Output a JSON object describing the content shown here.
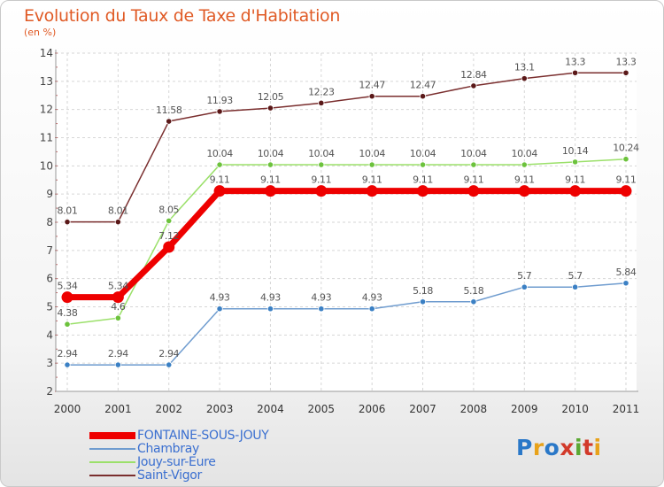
{
  "title": "Evolution du Taux de Taxe d'Habitation",
  "subtitle": "(en %)",
  "logo": {
    "text": "Proxiti",
    "letter_colors": [
      "#2a78c8",
      "#e8a21a",
      "#2a78c8",
      "#d23a2a",
      "#5aa832",
      "#d23a2a",
      "#e8a21a"
    ]
  },
  "chart_data": {
    "type": "line",
    "title": "Evolution du Taux de Taxe d'Habitation",
    "ylabel": "(en %)",
    "xlabel": "",
    "categories": [
      "2000",
      "2001",
      "2002",
      "2003",
      "2004",
      "2005",
      "2006",
      "2007",
      "2008",
      "2009",
      "2010",
      "2011"
    ],
    "ylim": [
      2,
      14
    ],
    "yticks": [
      "2",
      "3",
      "4",
      "5",
      "6",
      "7",
      "8",
      "9",
      "10",
      "11",
      "12",
      "13",
      "14"
    ],
    "grid": true,
    "legend_position": "bottom-left",
    "series": [
      {
        "name": "FONTAINE-SOUS-JOUY",
        "color": "#ee0000",
        "marker_color": "#ee0000",
        "emphasis": true,
        "values": [
          5.34,
          5.34,
          7.12,
          9.11,
          9.11,
          9.11,
          9.11,
          9.11,
          9.11,
          9.11,
          9.11,
          9.11
        ],
        "labels": [
          "5.34",
          "5.34",
          "7.12",
          "9.11",
          "9.11",
          "9.11",
          "9.11",
          "9.11",
          "9.11",
          "9.11",
          "9.11",
          "9.11"
        ]
      },
      {
        "name": "Chambray",
        "color": "#6f9ccf",
        "marker_color": "#3b80c4",
        "emphasis": false,
        "values": [
          2.94,
          2.94,
          2.94,
          4.93,
          4.93,
          4.93,
          4.93,
          5.18,
          5.18,
          5.7,
          5.7,
          5.84
        ],
        "labels": [
          "2.94",
          "2.94",
          "2.94",
          "4.93",
          "4.93",
          "4.93",
          "4.93",
          "5.18",
          "5.18",
          "5.7",
          "5.7",
          "5.84"
        ]
      },
      {
        "name": "Jouy-sur-Eure",
        "color": "#9be06a",
        "marker_color": "#6cc23c",
        "emphasis": false,
        "values": [
          4.38,
          4.6,
          8.05,
          10.04,
          10.04,
          10.04,
          10.04,
          10.04,
          10.04,
          10.04,
          10.14,
          10.24
        ],
        "labels": [
          "4.38",
          "4.6",
          "8.05",
          "10.04",
          "10.04",
          "10.04",
          "10.04",
          "10.04",
          "10.04",
          "10.04",
          "10.14",
          "10.24"
        ]
      },
      {
        "name": "Saint-Vigor",
        "color": "#7a2e2e",
        "marker_color": "#5a1818",
        "emphasis": false,
        "values": [
          8.01,
          8.01,
          11.58,
          11.93,
          12.05,
          12.23,
          12.47,
          12.47,
          12.84,
          13.1,
          13.3,
          13.3
        ],
        "labels": [
          "8.01",
          "8.01",
          "11.58",
          "11.93",
          "12.05",
          "12.23",
          "12.47",
          "12.47",
          "12.84",
          "13.1",
          "13.3",
          "13.3"
        ]
      }
    ]
  }
}
